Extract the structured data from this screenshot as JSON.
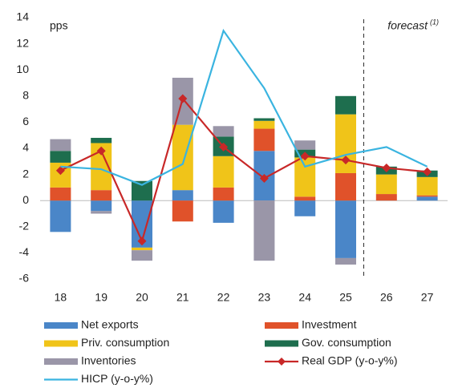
{
  "chart_data": {
    "type": "bar",
    "stacked": true,
    "y_label": "pps",
    "annotation": "forecast",
    "annotation_note": "(1)",
    "categories": [
      "18",
      "19",
      "20",
      "21",
      "22",
      "23",
      "24",
      "25",
      "26",
      "27"
    ],
    "series": [
      {
        "name": "Net exports",
        "type": "bar",
        "color": "#4a86c8",
        "values": [
          -2.4,
          -0.8,
          -3.6,
          0.8,
          -1.7,
          3.8,
          -1.2,
          -4.4,
          0,
          0.3
        ]
      },
      {
        "name": "Investment",
        "type": "bar",
        "color": "#e0522a",
        "values": [
          1.0,
          0.8,
          0,
          -1.6,
          1.0,
          1.7,
          0.3,
          2.1,
          0.5,
          0.1
        ]
      },
      {
        "name": "Priv. consumption",
        "type": "bar",
        "color": "#f0c419",
        "values": [
          1.9,
          3.6,
          -0.2,
          5.0,
          2.4,
          0.6,
          3.0,
          4.5,
          1.5,
          1.4
        ]
      },
      {
        "name": "Gov. consumption",
        "type": "bar",
        "color": "#1e6e4e",
        "values": [
          0.9,
          0.4,
          1.5,
          0,
          1.5,
          0.2,
          0.6,
          1.4,
          0.6,
          0.5
        ]
      },
      {
        "name": "Inventories",
        "type": "bar",
        "color": "#9a96a8",
        "values": [
          0.9,
          -0.2,
          -0.8,
          3.6,
          0.8,
          -4.6,
          0.7,
          -0.5,
          0,
          0
        ]
      },
      {
        "name": "Real GDP (y-o-y%)",
        "type": "line",
        "marker": "diamond",
        "color": "#c82828",
        "values": [
          2.3,
          3.8,
          -3.1,
          7.8,
          4.1,
          1.7,
          3.4,
          3.1,
          2.5,
          2.2
        ]
      },
      {
        "name": "HICP (y-o-y%)",
        "type": "line",
        "color": "#3ab4e0",
        "values": [
          2.6,
          2.4,
          1.2,
          2.8,
          13.0,
          8.6,
          2.6,
          3.5,
          4.1,
          2.6
        ]
      }
    ],
    "ylim": [
      -6,
      14
    ],
    "yticks": [
      -6,
      -4,
      -2,
      0,
      2,
      4,
      6,
      8,
      10,
      12,
      14
    ],
    "grid": false,
    "legend": "bottom"
  }
}
